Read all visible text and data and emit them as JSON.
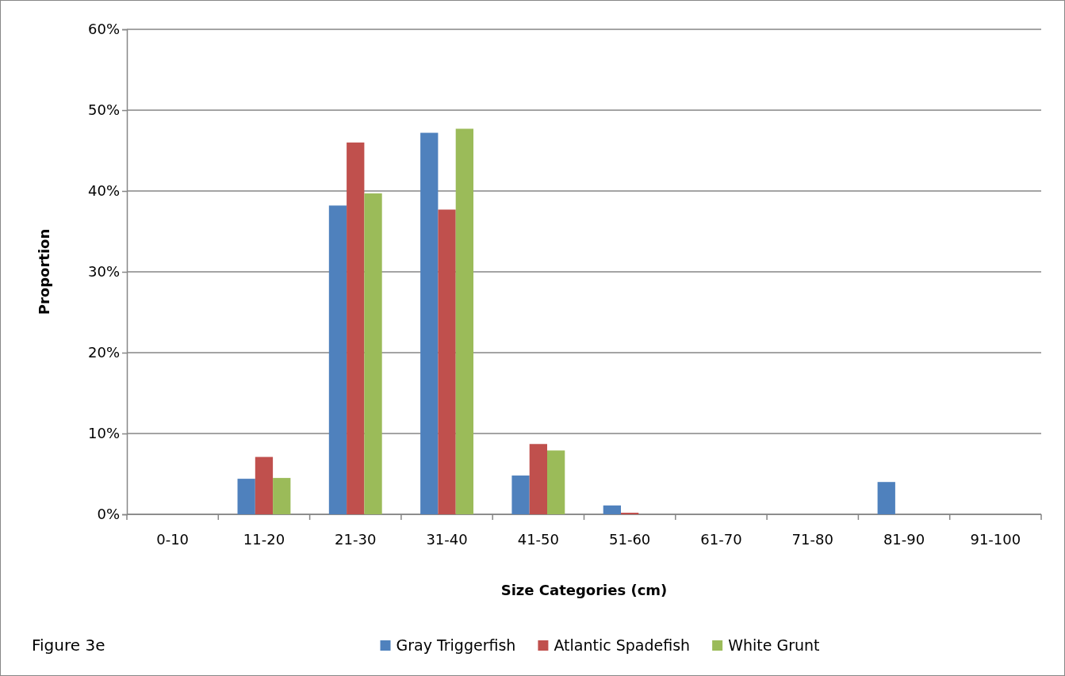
{
  "chart_data": {
    "type": "bar",
    "xlabel": "Size Categories (cm)",
    "ylabel": "Proportion",
    "categories": [
      "0-10",
      "11-20",
      "21-30",
      "31-40",
      "41-50",
      "51-60",
      "61-70",
      "71-80",
      "81-90",
      "91-100"
    ],
    "series": [
      {
        "name": "Gray Triggerfish",
        "color": "#4f81bd",
        "values": [
          0,
          4.4,
          38.2,
          47.2,
          4.8,
          1.1,
          0,
          0,
          4.0,
          0
        ]
      },
      {
        "name": "Atlantic Spadefish",
        "color": "#c0504d",
        "values": [
          0,
          7.1,
          46.0,
          37.7,
          8.7,
          0.2,
          0,
          0,
          0,
          0
        ]
      },
      {
        "name": "White Grunt",
        "color": "#9bbb59",
        "values": [
          0,
          4.5,
          39.7,
          47.7,
          7.9,
          0,
          0,
          0,
          0,
          0
        ]
      }
    ],
    "ylim": [
      0,
      60
    ],
    "yticks": [
      {
        "value": 0,
        "label": "0%"
      },
      {
        "value": 10,
        "label": "10%"
      },
      {
        "value": 20,
        "label": "20%"
      },
      {
        "value": 30,
        "label": "30%"
      },
      {
        "value": 40,
        "label": "40%"
      },
      {
        "value": 50,
        "label": "50%"
      },
      {
        "value": 60,
        "label": "60%"
      }
    ],
    "grid": "y",
    "legend": "bottom",
    "annotations": [
      "Figure 3e"
    ]
  }
}
